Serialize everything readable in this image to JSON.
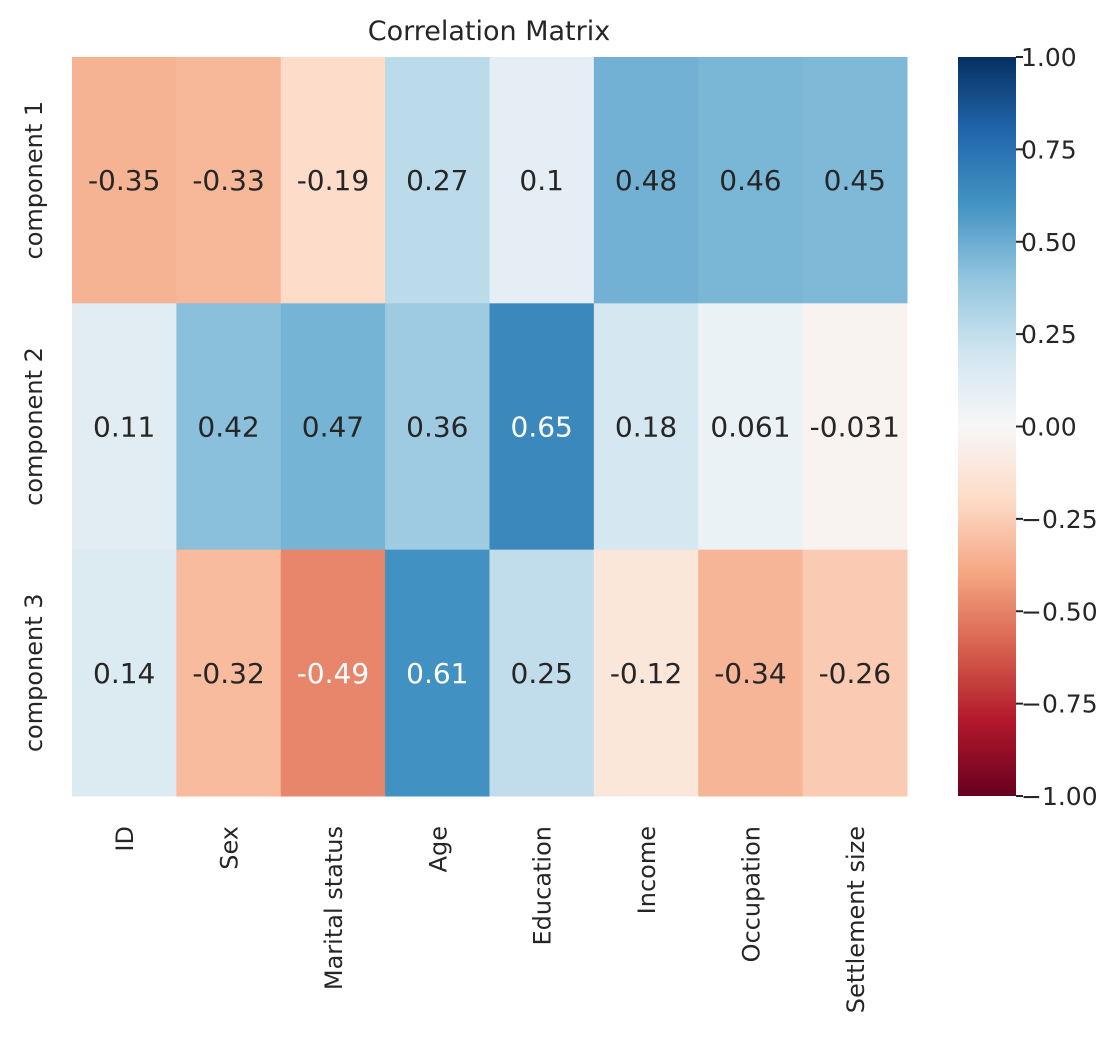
{
  "chart_data": {
    "type": "heatmap",
    "title": "Correlation Matrix",
    "xlabel": "",
    "ylabel": "",
    "x_categories": [
      "ID",
      "Sex",
      "Marital status",
      "Age",
      "Education",
      "Income",
      "Occupation",
      "Settlement size"
    ],
    "y_categories": [
      "component 1",
      "component 2",
      "component 3"
    ],
    "values": [
      [
        -0.35,
        -0.33,
        -0.19,
        0.27,
        0.1,
        0.48,
        0.46,
        0.45
      ],
      [
        0.11,
        0.42,
        0.47,
        0.36,
        0.65,
        0.18,
        0.061,
        -0.031
      ],
      [
        0.14,
        -0.32,
        -0.49,
        0.61,
        0.25,
        -0.12,
        -0.34,
        -0.26
      ]
    ],
    "value_labels": [
      [
        "-0.35",
        "-0.33",
        "-0.19",
        "0.27",
        "0.1",
        "0.48",
        "0.46",
        "0.45"
      ],
      [
        "0.11",
        "0.42",
        "0.47",
        "0.36",
        "0.65",
        "0.18",
        "0.061",
        "-0.031"
      ],
      [
        "0.14",
        "-0.32",
        "-0.49",
        "0.61",
        "0.25",
        "-0.12",
        "-0.34",
        "-0.26"
      ]
    ],
    "colormap": "RdBu",
    "vmin": -1.0,
    "vmax": 1.0,
    "colorbar": {
      "ticks": [
        1.0,
        0.75,
        0.5,
        0.25,
        0.0,
        -0.25,
        -0.5,
        -0.75,
        -1.0
      ],
      "tick_labels": [
        "1.00",
        "0.75",
        "0.50",
        "0.25",
        "0.00",
        "−0.25",
        "−0.50",
        "−0.75",
        "−1.00"
      ],
      "colors": [
        "#67001f",
        "#b2182b",
        "#d6604d",
        "#f4a582",
        "#fddbc7",
        "#f7f7f7",
        "#d1e5f0",
        "#92c5de",
        "#4393c3",
        "#2166ac",
        "#053061"
      ]
    },
    "text_colors": {
      "dark": "#262626",
      "light": "#ffffff"
    }
  }
}
